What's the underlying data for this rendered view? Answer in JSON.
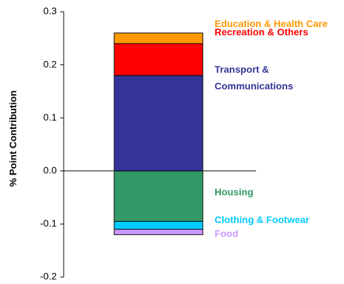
{
  "chart_data": {
    "type": "stacked_bar",
    "y_label": "% Point Contribution",
    "categories": [
      null
    ],
    "series": [
      {
        "name": "Transport & Communications",
        "color": "#333399",
        "values": [
          0.18
        ]
      },
      {
        "name": "Recreation & Others",
        "color": "#ff0000",
        "values": [
          0.06
        ]
      },
      {
        "name": "Education & Health Care",
        "color": "#ff9900",
        "values": [
          0.02
        ]
      },
      {
        "name": "Housing",
        "color": "#339966",
        "values": [
          -0.095
        ]
      },
      {
        "name": "Clothing & Footwear",
        "color": "#00ccff",
        "values": [
          -0.015
        ]
      },
      {
        "name": "Food",
        "color": "#cc99ff",
        "values": [
          -0.01
        ]
      }
    ],
    "ylim": [
      -0.2,
      0.3
    ],
    "yticks": [
      {
        "value": -0.2,
        "label": "-0.2"
      },
      {
        "value": -0.1,
        "label": "-0.1"
      },
      {
        "value": 0,
        "label": "0.0"
      },
      0.1,
      0.2,
      0.3
    ]
  }
}
